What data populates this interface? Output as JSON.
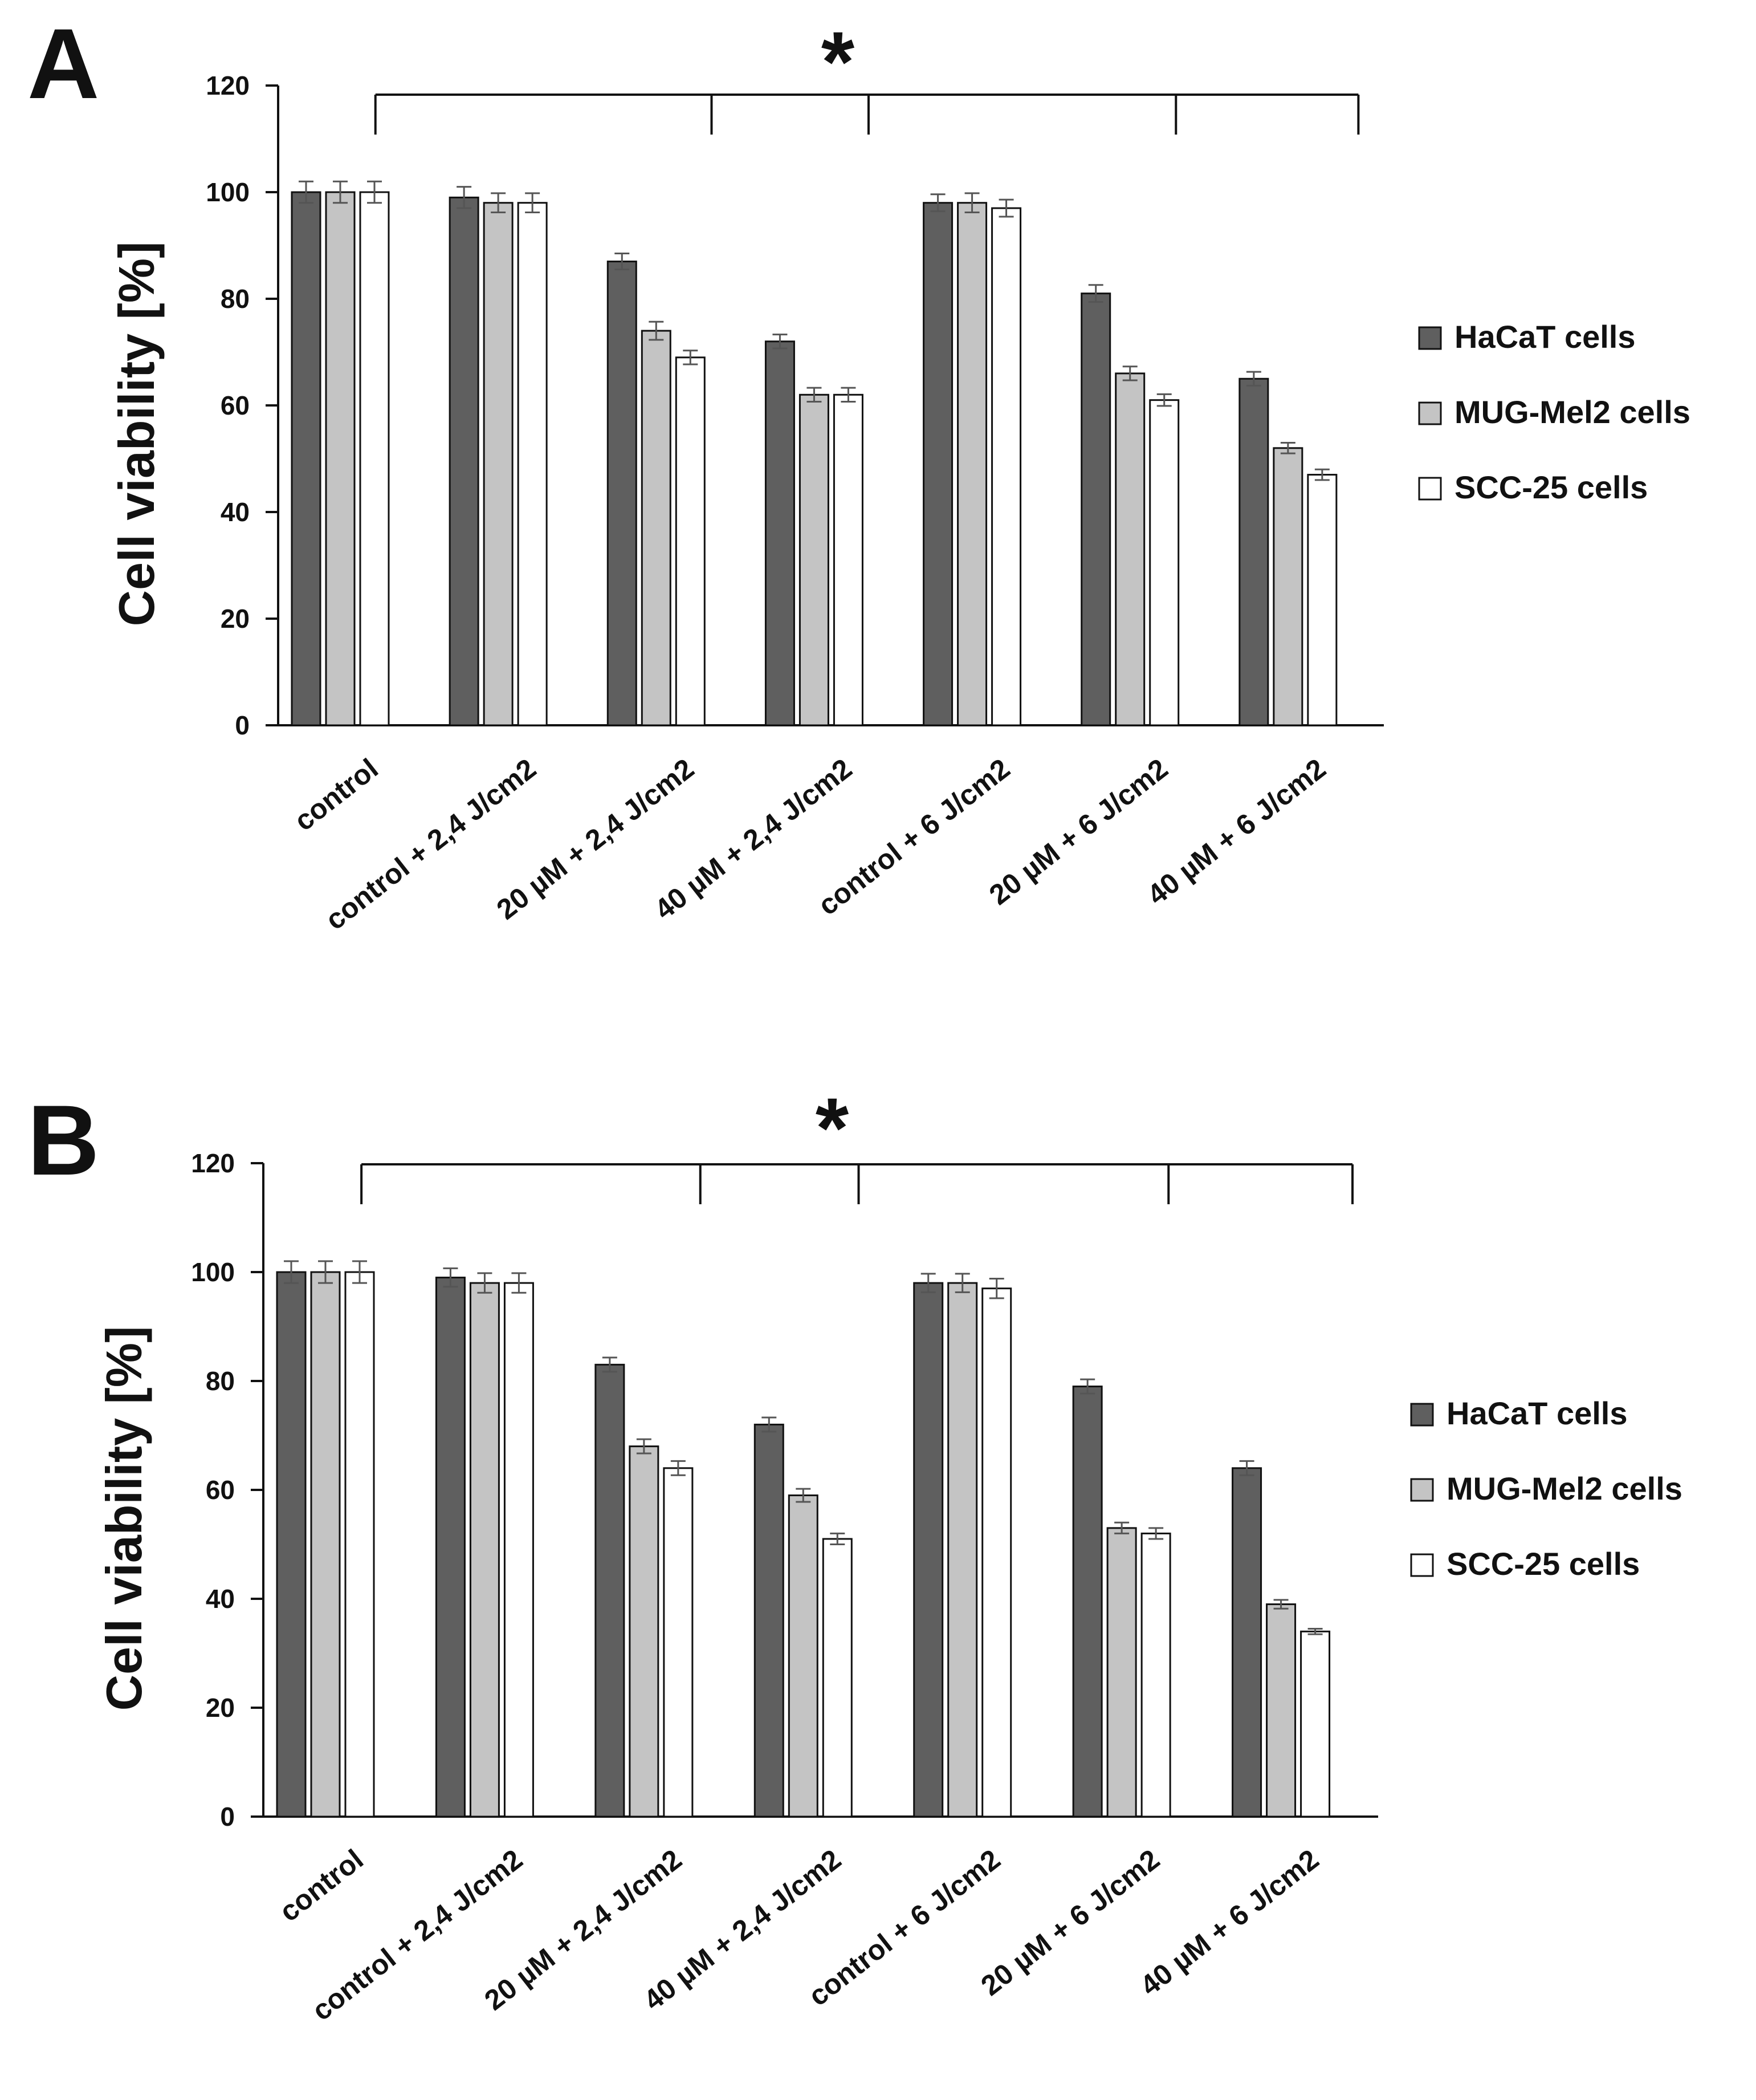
{
  "chart_data": [
    {
      "panel": "A",
      "type": "bar",
      "title": "",
      "xlabel": "",
      "ylabel": "Cell viability [%]",
      "ylim": [
        0,
        120
      ],
      "yticks": [
        0,
        20,
        40,
        60,
        80,
        100,
        120
      ],
      "categories": [
        "control",
        "control + 2,4 J/cm2",
        "20 µM + 2,4 J/cm2",
        "40 µM + 2,4 J/cm2",
        "control + 6 J/cm2",
        "20 µM + 6 J/cm2",
        "40 µM + 6 J/cm2"
      ],
      "series": [
        {
          "name": "HaCaT cells",
          "color": "#5f5f5f",
          "values": [
            100,
            99,
            87,
            72,
            98,
            81,
            65
          ],
          "errors": [
            2,
            2,
            1.5,
            1.3,
            1.6,
            1.6,
            1.3
          ]
        },
        {
          "name": "MUG-Mel2 cells",
          "color": "#c4c4c4",
          "values": [
            100,
            98,
            74,
            62,
            98,
            66,
            52
          ],
          "errors": [
            2,
            1.8,
            1.7,
            1.3,
            1.8,
            1.3,
            1
          ]
        },
        {
          "name": "SCC-25 cells",
          "color": "#ffffff",
          "values": [
            100,
            98,
            69,
            62,
            97,
            61,
            47
          ],
          "errors": [
            2,
            1.8,
            1.3,
            1.3,
            1.6,
            1.1,
            1
          ]
        }
      ],
      "legend": "right",
      "grid": false,
      "annotation": "*"
    },
    {
      "panel": "B",
      "type": "bar",
      "title": "",
      "xlabel": "",
      "ylabel": "Cell viability [%]",
      "ylim": [
        0,
        120
      ],
      "yticks": [
        0,
        20,
        40,
        60,
        80,
        100,
        120
      ],
      "categories": [
        "control",
        "control + 2,4 J/cm2",
        "20 µM + 2,4 J/cm2",
        "40 µM + 2,4 J/cm2",
        "control + 6 J/cm2",
        "20 µM + 6 J/cm2",
        "40 µM + 6 J/cm2"
      ],
      "series": [
        {
          "name": "HaCaT cells",
          "color": "#5f5f5f",
          "values": [
            100,
            99,
            83,
            72,
            98,
            79,
            64
          ],
          "errors": [
            2,
            1.7,
            1.3,
            1.3,
            1.7,
            1.3,
            1.3
          ]
        },
        {
          "name": "MUG-Mel2 cells",
          "color": "#c4c4c4",
          "values": [
            100,
            98,
            68,
            59,
            98,
            53,
            39
          ],
          "errors": [
            2,
            1.8,
            1.3,
            1.2,
            1.7,
            1,
            0.8
          ]
        },
        {
          "name": "SCC-25 cells",
          "color": "#ffffff",
          "values": [
            100,
            98,
            64,
            51,
            97,
            52,
            34
          ],
          "errors": [
            2,
            1.8,
            1.3,
            1,
            1.8,
            1,
            0.5
          ]
        }
      ],
      "legend": "right",
      "grid": false,
      "annotation": "*"
    }
  ]
}
